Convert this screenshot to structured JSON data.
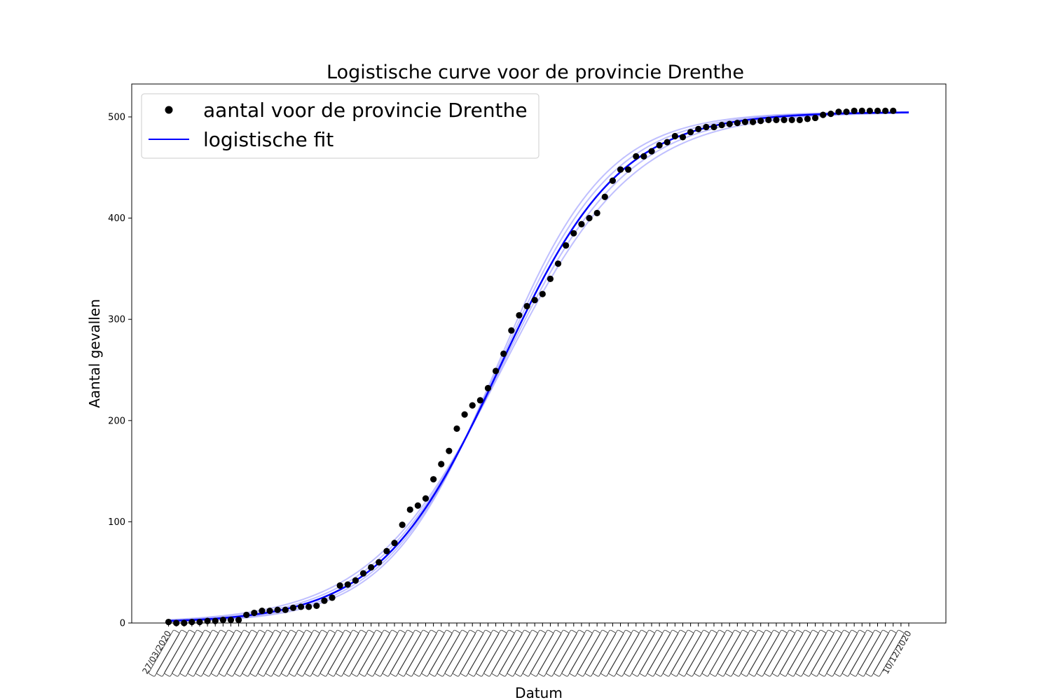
{
  "chart_data": {
    "type": "scatter",
    "title": "Logistische curve voor de provincie Drenthe",
    "xlabel": "Datum",
    "ylabel": "Aantal gevallen",
    "ylim": [
      0,
      530
    ],
    "yticks": [
      0,
      100,
      200,
      300,
      400,
      500
    ],
    "grid": false,
    "legend_position": "top-left",
    "x_first_label": "27/03/2020",
    "x_last_label": "10/12/2020",
    "series": [
      {
        "name": "aantal voor de provincie Drenthe",
        "kind": "points",
        "color": "#000000",
        "x": [
          0,
          1,
          2,
          3,
          4,
          5,
          6,
          7,
          8,
          9,
          10,
          11,
          12,
          13,
          14,
          15,
          16,
          17,
          18,
          19,
          20,
          21,
          22,
          23,
          24,
          25,
          26,
          27,
          28,
          29,
          30,
          31,
          32,
          33,
          34,
          35,
          36,
          37,
          38,
          39,
          40,
          41,
          42,
          43,
          44,
          45,
          46,
          47,
          48,
          49,
          50,
          51,
          52,
          53,
          54,
          55,
          56,
          57,
          58,
          59,
          60,
          61,
          62,
          63,
          64,
          65,
          66,
          67,
          68,
          69,
          70,
          71,
          72,
          73,
          74,
          75,
          76,
          77,
          78,
          79,
          80,
          81,
          82,
          83,
          84,
          85,
          86,
          87,
          88,
          89,
          90,
          91,
          92,
          93
        ],
        "y": [
          1,
          0,
          0,
          1,
          1,
          2,
          2,
          3,
          3,
          3,
          8,
          10,
          12,
          12,
          13,
          13,
          15,
          16,
          16,
          17,
          22,
          25,
          37,
          38,
          42,
          49,
          55,
          60,
          71,
          79,
          97,
          112,
          116,
          123,
          142,
          157,
          170,
          192,
          206,
          215,
          220,
          232,
          249,
          266,
          289,
          304,
          313,
          319,
          325,
          340,
          355,
          373,
          385,
          394,
          400,
          405,
          421,
          437,
          448,
          448,
          461,
          461,
          466,
          472,
          475,
          481,
          480,
          485,
          488,
          490,
          490,
          492,
          493,
          494,
          495,
          495,
          496,
          497,
          497,
          497,
          497,
          497,
          498,
          499,
          502,
          503,
          505,
          505,
          506,
          506,
          506,
          506,
          506,
          506
        ]
      },
      {
        "name": "logistische fit",
        "kind": "line",
        "color": "#0000ff",
        "model": "logistic",
        "params": {
          "L": 505,
          "k": 0.13,
          "x0": 42.5
        },
        "x_range": [
          0,
          95
        ]
      }
    ],
    "x_tick_count": 96
  }
}
